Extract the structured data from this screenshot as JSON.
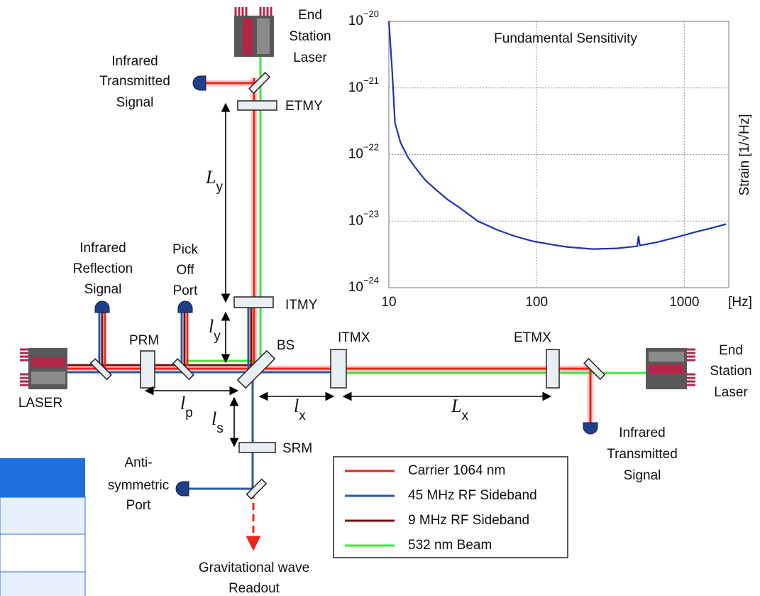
{
  "labels": {
    "end_station_laser_top": [
      "End",
      "Station",
      "Laser"
    ],
    "infrared_transmitted_top": [
      "Infrared",
      "Transmitted",
      "Signal"
    ],
    "infrared_reflection": [
      "Infrared",
      "Reflection",
      "Signal"
    ],
    "pick_off_port": [
      "Pick",
      "Off",
      "Port"
    ],
    "laser": "LASER",
    "end_station_laser_right": [
      "End",
      "Station",
      "Laser"
    ],
    "infrared_transmitted_right": [
      "Infrared",
      "Transmitted",
      "Signal"
    ],
    "anti_symmetric_port": [
      "Anti-",
      "symmetric",
      "Port"
    ],
    "gw_readout": [
      "Gravitational wave",
      "Readout"
    ]
  },
  "optics": {
    "etmy": "ETMY",
    "itmy": "ITMY",
    "bs": "BS",
    "srm": "SRM",
    "prm": "PRM",
    "itmx": "ITMX",
    "etmx": "ETMX"
  },
  "lengths": {
    "Ly": {
      "base": "L",
      "sub": "y"
    },
    "ly": {
      "base": "l",
      "sub": "y"
    },
    "lp": {
      "base": "l",
      "sub": "p"
    },
    "ls": {
      "base": "l",
      "sub": "s"
    },
    "lx": {
      "base": "l",
      "sub": "x"
    },
    "Lx": {
      "base": "L",
      "sub": "x"
    }
  },
  "legend": [
    {
      "name": "Carrier 1064 nm",
      "color": "#e8261c"
    },
    {
      "name": "45 MHz RF Sideband",
      "color": "#2a5aa8"
    },
    {
      "name": "9 MHz RF Sideband",
      "color": "#7a1010"
    },
    {
      "name": "532 nm Beam",
      "color": "#3ee63e"
    }
  ],
  "chart_data": {
    "type": "line",
    "title": "Fundamental Sensitivity",
    "y_label": "Strain [1/√Hz]",
    "x_label": "[Hz]",
    "log_x": true,
    "log_y": true,
    "grid": true,
    "color": "#2233aa",
    "x": [
      10,
      10.5,
      11,
      12,
      13.5,
      15,
      17.5,
      20,
      25,
      30,
      40,
      54,
      70,
      94,
      130,
      160,
      240,
      350,
      480,
      490,
      500,
      650,
      850,
      1200,
      1500,
      1920
    ],
    "values": [
      1e-20,
      2e-21,
      3e-22,
      1.5e-22,
      9e-23,
      6.5e-23,
      4.2e-23,
      3.2e-23,
      2.1e-23,
      1.6e-23,
      1e-23,
      7.4e-24,
      6e-24,
      5e-24,
      4.4e-24,
      4.1e-24,
      3.8e-24,
      3.9e-24,
      4.2e-24,
      6e-24,
      4.3e-24,
      4.8e-24,
      5.6e-24,
      6.9e-24,
      7.8e-24,
      9e-24
    ],
    "xlim": [
      10,
      2000
    ],
    "ylim": [
      1e-24,
      1e-20
    ],
    "xticks": [
      10,
      100,
      1000
    ],
    "yticks": [
      {
        "value": 1e-20,
        "base": "10",
        "exponent": "−20"
      },
      {
        "value": 1e-21,
        "base": "10",
        "exponent": "−21"
      },
      {
        "value": 1e-22,
        "base": "10",
        "exponent": "−22"
      },
      {
        "value": 1e-23,
        "base": "10",
        "exponent": "−23"
      },
      {
        "value": 1e-24,
        "base": "10",
        "exponent": "−24"
      }
    ]
  }
}
